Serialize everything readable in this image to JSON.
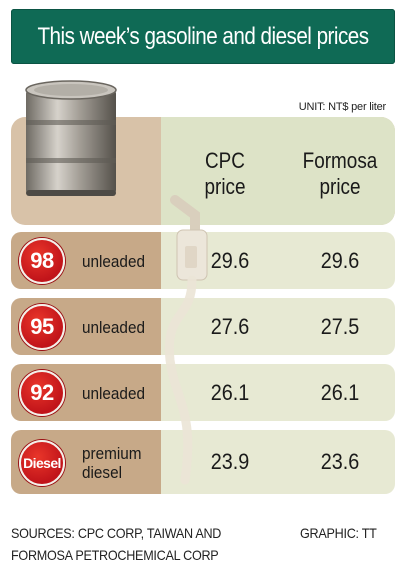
{
  "title": "This week’s gasoline and diesel prices",
  "unit": "UNIT: NT$ per liter",
  "columns": {
    "cpc": "CPC\nprice",
    "formosa": "Formosa\nprice"
  },
  "rows": [
    {
      "badge": "98",
      "label": "unleaded",
      "cpc": "29.6",
      "formosa": "29.6"
    },
    {
      "badge": "95",
      "label": "unleaded",
      "cpc": "27.6",
      "formosa": "27.5"
    },
    {
      "badge": "92",
      "label": "unleaded",
      "cpc": "26.1",
      "formosa": "26.1"
    },
    {
      "badge": "Diesel",
      "label": "premium\ndiesel",
      "cpc": "23.9",
      "formosa": "23.6"
    }
  ],
  "sources": "SOURCES: CPC CORP, TAIWAN AND\nFORMOSA PETROCHEMICAL CORP",
  "credit": "GRAPHIC: TT",
  "colors": {
    "title_bg": "#0f6a55",
    "badge": "#d1231f",
    "left_panel": "#c7a988",
    "right_panel": "#e7e9d3"
  },
  "icons": [
    "oil-barrel-icon",
    "fuel-pump-icon"
  ],
  "chart_data": {
    "type": "table",
    "title": "This week’s gasoline and diesel prices",
    "unit": "NT$ per liter",
    "columns": [
      "CPC price",
      "Formosa price"
    ],
    "categories": [
      "98 unleaded",
      "95 unleaded",
      "92 unleaded",
      "premium diesel"
    ],
    "series": [
      {
        "name": "CPC price",
        "values": [
          29.6,
          27.6,
          26.1,
          23.9
        ]
      },
      {
        "name": "Formosa price",
        "values": [
          29.6,
          27.5,
          26.1,
          23.6
        ]
      }
    ]
  }
}
